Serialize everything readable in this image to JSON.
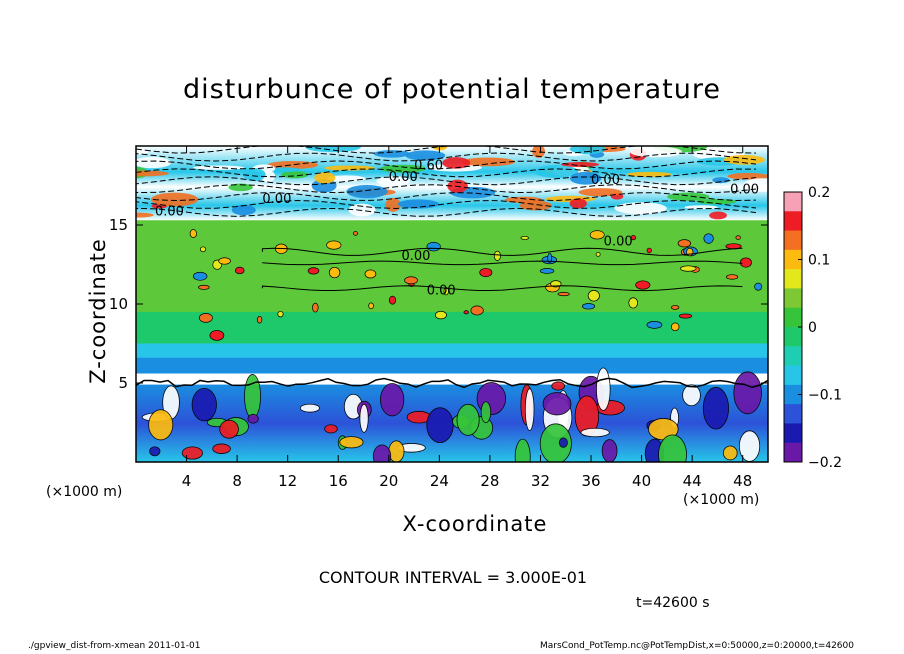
{
  "chart_data": {
    "type": "heatmap",
    "title": "disturbunce of potential temperature",
    "xlabel": "X-coordinate",
    "ylabel": "Z-coordinate",
    "x_unit_left": "(×1000 m)",
    "x_unit_right": "(×1000 m)",
    "xlim": [
      0,
      50
    ],
    "ylim": [
      0,
      20
    ],
    "x_ticks": [
      "4",
      "8",
      "12",
      "16",
      "20",
      "24",
      "28",
      "32",
      "36",
      "40",
      "44",
      "48"
    ],
    "y_ticks": [
      "5",
      "10",
      "15"
    ],
    "colorbar": {
      "range": [
        -0.2,
        0.2
      ],
      "ticks": [
        "0.2",
        "0.1",
        "0",
        "−0.1",
        "−0.2"
      ],
      "colors": [
        "#f7a1b6",
        "#ee1c24",
        "#f36f21",
        "#fdbb0f",
        "#e2e81c",
        "#7cc933",
        "#36c53a",
        "#1ec96b",
        "#1fcdb3",
        "#27c6e9",
        "#1a8ee0",
        "#2c52d8",
        "#1a1ab0",
        "#6a18a8"
      ]
    },
    "contour_labels": [
      "0.60",
      "0.00",
      "0.00",
      "0.00",
      "0.00",
      "0.00",
      "0.00",
      "0.00",
      "0.00"
    ],
    "contour_interval_text": "CONTOUR INTERVAL = 3.000E-01",
    "time_text": "t=42600 s",
    "grid": false
  },
  "footer": {
    "left": "./gpview_dist-from-xmean   2011-01-01",
    "right": "MarsCond_PotTemp.nc@PotTempDist,x=0:50000,z=0:20000,t=42600"
  }
}
